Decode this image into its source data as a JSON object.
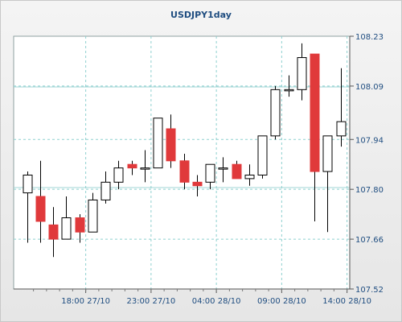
{
  "chart_data": {
    "type": "candlestick",
    "title": "USDJPY1day",
    "xlabel": "",
    "ylabel": "",
    "ylim": [
      107.52,
      108.23
    ],
    "y_ticks": [
      "108.23",
      "108.09",
      "107.94",
      "107.80",
      "107.66",
      "107.52"
    ],
    "x_ticks": [
      {
        "label": "18:00 27/10",
        "index": 4.5
      },
      {
        "label": "23:00 27/10",
        "index": 9.5
      },
      {
        "label": "04:00 28/10",
        "index": 14.5
      },
      {
        "label": "09:00 28/10",
        "index": 19.5
      },
      {
        "label": "14:00 28/10",
        "index": 24.5
      }
    ],
    "grid": true,
    "colors": {
      "up": "#ffffff",
      "down": "#e0393b",
      "wick": "#000000",
      "grid": "#8fd0cf",
      "text": "#1f4d80"
    },
    "candles": [
      {
        "open": 107.79,
        "high": 107.85,
        "low": 107.65,
        "close": 107.84
      },
      {
        "open": 107.78,
        "high": 107.88,
        "low": 107.65,
        "close": 107.71
      },
      {
        "open": 107.7,
        "high": 107.75,
        "low": 107.61,
        "close": 107.66
      },
      {
        "open": 107.66,
        "high": 107.78,
        "low": 107.66,
        "close": 107.72
      },
      {
        "open": 107.72,
        "high": 107.73,
        "low": 107.65,
        "close": 107.68
      },
      {
        "open": 107.68,
        "high": 107.79,
        "low": 107.68,
        "close": 107.77
      },
      {
        "open": 107.77,
        "high": 107.85,
        "low": 107.76,
        "close": 107.82
      },
      {
        "open": 107.82,
        "high": 107.88,
        "low": 107.8,
        "close": 107.86
      },
      {
        "open": 107.87,
        "high": 107.88,
        "low": 107.84,
        "close": 107.86
      },
      {
        "open": 107.86,
        "high": 107.91,
        "low": 107.82,
        "close": 107.86
      },
      {
        "open": 107.86,
        "high": 108.0,
        "low": 107.86,
        "close": 108.0
      },
      {
        "open": 107.97,
        "high": 108.01,
        "low": 107.86,
        "close": 107.88
      },
      {
        "open": 107.88,
        "high": 107.9,
        "low": 107.8,
        "close": 107.82
      },
      {
        "open": 107.82,
        "high": 107.84,
        "low": 107.78,
        "close": 107.81
      },
      {
        "open": 107.82,
        "high": 107.87,
        "low": 107.8,
        "close": 107.87
      },
      {
        "open": 107.86,
        "high": 107.89,
        "low": 107.82,
        "close": 107.86
      },
      {
        "open": 107.87,
        "high": 107.88,
        "low": 107.83,
        "close": 107.83
      },
      {
        "open": 107.83,
        "high": 107.87,
        "low": 107.81,
        "close": 107.84
      },
      {
        "open": 107.84,
        "high": 107.95,
        "low": 107.83,
        "close": 107.95
      },
      {
        "open": 107.95,
        "high": 108.09,
        "low": 107.94,
        "close": 108.08
      },
      {
        "open": 108.08,
        "high": 108.12,
        "low": 108.06,
        "close": 108.08
      },
      {
        "open": 108.08,
        "high": 108.21,
        "low": 108.05,
        "close": 108.17
      },
      {
        "open": 108.18,
        "high": 108.18,
        "low": 107.71,
        "close": 107.85
      },
      {
        "open": 107.85,
        "high": 107.95,
        "low": 107.68,
        "close": 107.95
      },
      {
        "open": 107.95,
        "high": 108.14,
        "low": 107.92,
        "close": 107.99
      }
    ]
  }
}
